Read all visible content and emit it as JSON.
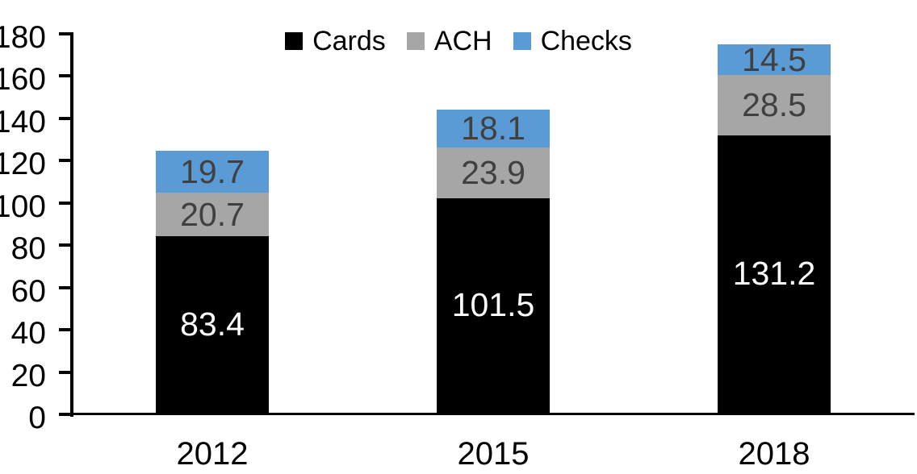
{
  "figure": {
    "background": "#FFFFFF",
    "axis_color": "#000000",
    "tick_label_color": "#000000",
    "inner_label_dark": "#404040",
    "inner_label_light": "#FFFFFF"
  },
  "legend": {
    "items": [
      {
        "label": "Cards",
        "color": "#000000"
      },
      {
        "label": "ACH",
        "color": "#A6A6A6"
      },
      {
        "label": "Checks",
        "color": "#5B9BD5"
      }
    ]
  },
  "chart_data": {
    "type": "bar",
    "stacked": true,
    "title": "",
    "xlabel": "",
    "ylabel": "",
    "categories": [
      "2012",
      "2015",
      "2018"
    ],
    "series": [
      {
        "name": "Cards",
        "color": "#000000",
        "label_color": "#FFFFFF",
        "values": [
          83.4,
          101.5,
          131.2
        ]
      },
      {
        "name": "ACH",
        "color": "#A6A6A6",
        "label_color": "#404040",
        "values": [
          20.7,
          23.9,
          28.5
        ]
      },
      {
        "name": "Checks",
        "color": "#5B9BD5",
        "label_color": "#404040",
        "values": [
          19.7,
          18.1,
          14.5
        ]
      }
    ],
    "totals": [
      123.8,
      143.5,
      174.2
    ],
    "ylim": [
      0,
      180
    ],
    "yticks": [
      0,
      20,
      40,
      60,
      80,
      100,
      120,
      140,
      160,
      180
    ],
    "grid": false,
    "data_labels": true,
    "legend_position": "top-center"
  }
}
